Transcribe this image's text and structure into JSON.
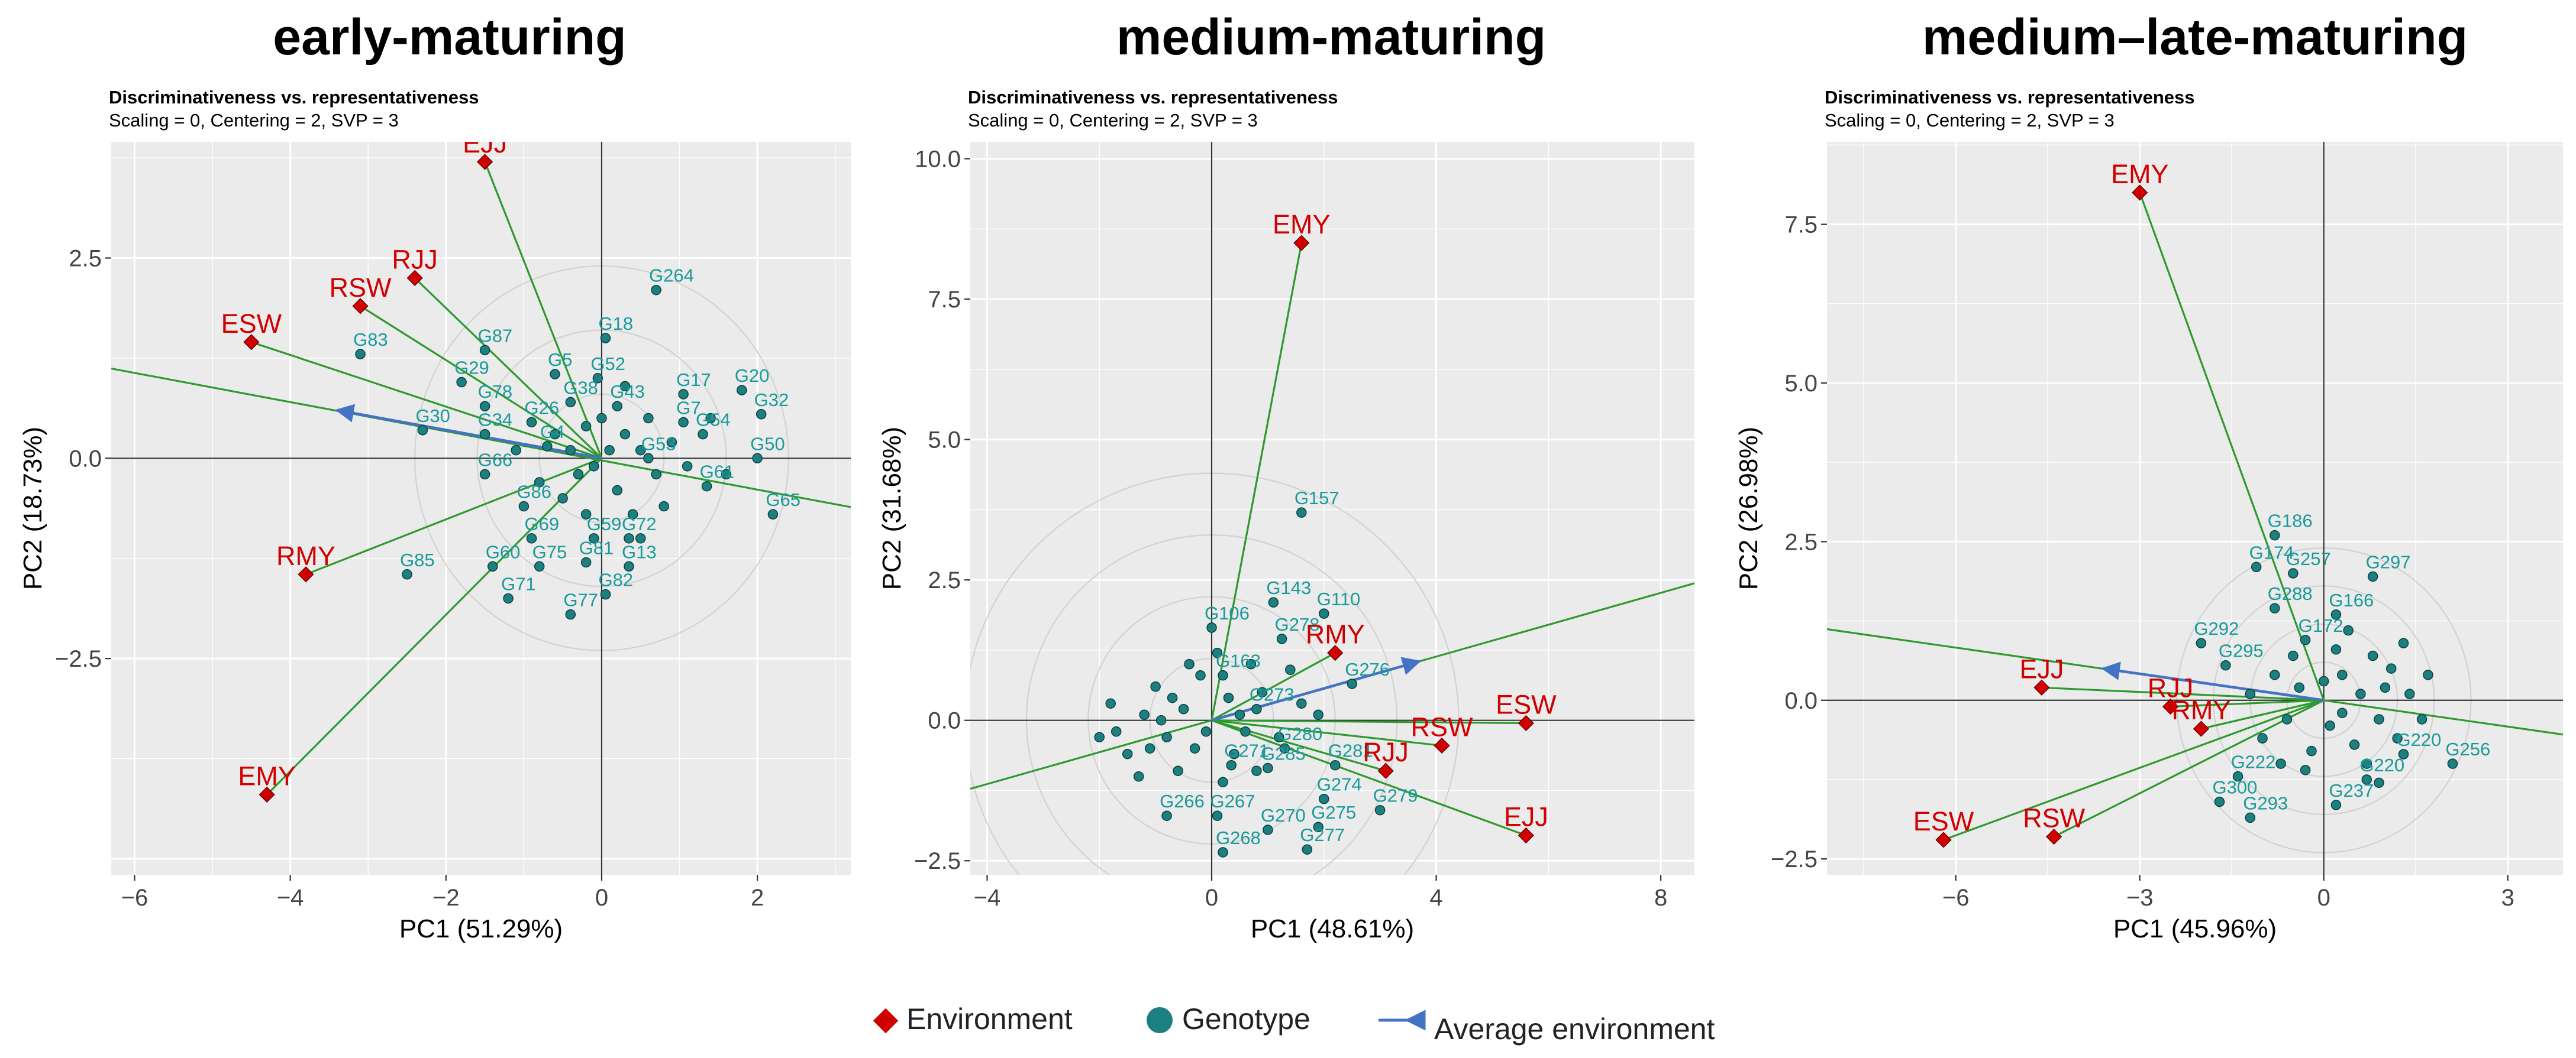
{
  "colors": {
    "panel_bg": "#ebebeb",
    "grid_major": "#ffffff",
    "environment": "#d00000",
    "genotype_fill": "#1c8080",
    "genotype_label": "#1a9a9a",
    "vector": "#2e9a2e",
    "average_arrow": "#4472c4",
    "circle": "#d2d2d2",
    "axis_zero": "#333333"
  },
  "legend": {
    "environment_label": "Environment",
    "genotype_label": "Genotype",
    "average_label": "Average environment"
  },
  "chart_data": [
    {
      "type": "scatter",
      "title": "early-maturing",
      "subtitle_bold": "Discriminativeness vs. representativeness",
      "subtitle": "Scaling = 0, Centering = 2, SVP = 3",
      "xlabel": "PC1 (51.29%)",
      "ylabel": "PC2 (18.73%)",
      "xlim": [
        -6.3,
        3.2
      ],
      "ylim": [
        -5.2,
        3.95
      ],
      "xticks": [
        -6,
        -4,
        -2,
        0,
        2
      ],
      "xtick_labels": [
        "−6",
        "−4",
        "−2",
        "0",
        "2"
      ],
      "yticks": [
        -2.5,
        0,
        2.5
      ],
      "ytick_labels": [
        "−2.5",
        "0.0",
        "2.5"
      ],
      "circles": [
        0.8,
        1.6,
        2.4
      ],
      "average_arrow": [
        -3.4,
        0.6
      ],
      "average_axis_line": [
        [
          -6.3,
          1.12
        ],
        [
          3.2,
          -0.61
        ]
      ],
      "environments": [
        {
          "label": "EJJ",
          "x": -1.5,
          "y": 3.7
        },
        {
          "label": "RJJ",
          "x": -2.4,
          "y": 2.25
        },
        {
          "label": "RSW",
          "x": -3.1,
          "y": 1.9
        },
        {
          "label": "ESW",
          "x": -4.5,
          "y": 1.45
        },
        {
          "label": "RMY",
          "x": -3.8,
          "y": -1.45
        },
        {
          "label": "EMY",
          "x": -4.3,
          "y": -4.2
        }
      ],
      "genotypes_labeled": [
        {
          "label": "G264",
          "x": 0.7,
          "y": 2.1
        },
        {
          "label": "G18",
          "x": 0.05,
          "y": 1.5
        },
        {
          "label": "G87",
          "x": -1.5,
          "y": 1.35
        },
        {
          "label": "G83",
          "x": -3.1,
          "y": 1.3
        },
        {
          "label": "G29",
          "x": -1.8,
          "y": 0.95
        },
        {
          "label": "G5",
          "x": -0.6,
          "y": 1.05
        },
        {
          "label": "G52",
          "x": -0.05,
          "y": 1.0
        },
        {
          "label": "G17",
          "x": 1.05,
          "y": 0.8
        },
        {
          "label": "G20",
          "x": 1.8,
          "y": 0.85
        },
        {
          "label": "G38",
          "x": -0.4,
          "y": 0.7
        },
        {
          "label": "G43",
          "x": 0.2,
          "y": 0.65
        },
        {
          "label": "G78",
          "x": -1.5,
          "y": 0.65
        },
        {
          "label": "G7",
          "x": 1.05,
          "y": 0.45
        },
        {
          "label": "G32",
          "x": 2.05,
          "y": 0.55
        },
        {
          "label": "G26",
          "x": -0.9,
          "y": 0.45
        },
        {
          "label": "G54",
          "x": 1.3,
          "y": 0.3
        },
        {
          "label": "G30",
          "x": -2.3,
          "y": 0.35
        },
        {
          "label": "G34",
          "x": -1.5,
          "y": 0.3
        },
        {
          "label": "G4",
          "x": -0.7,
          "y": 0.15
        },
        {
          "label": "G53",
          "x": 0.6,
          "y": 0.0
        },
        {
          "label": "G50",
          "x": 2.0,
          "y": 0.0
        },
        {
          "label": "G66",
          "x": -1.5,
          "y": -0.2
        },
        {
          "label": "G61",
          "x": 1.35,
          "y": -0.35
        },
        {
          "label": "G86",
          "x": -1.0,
          "y": -0.6
        },
        {
          "label": "G65",
          "x": 2.2,
          "y": -0.7
        },
        {
          "label": "G69",
          "x": -0.9,
          "y": -1.0
        },
        {
          "label": "G59",
          "x": -0.1,
          "y": -1.0
        },
        {
          "label": "G72",
          "x": 0.35,
          "y": -1.0
        },
        {
          "label": "G60",
          "x": -1.4,
          "y": -1.35
        },
        {
          "label": "G75",
          "x": -0.8,
          "y": -1.35
        },
        {
          "label": "G81",
          "x": -0.2,
          "y": -1.3
        },
        {
          "label": "G13",
          "x": 0.35,
          "y": -1.35
        },
        {
          "label": "G85",
          "x": -2.5,
          "y": -1.45
        },
        {
          "label": "G71",
          "x": -1.2,
          "y": -1.75
        },
        {
          "label": "G82",
          "x": 0.05,
          "y": -1.7
        },
        {
          "label": "G77",
          "x": -0.4,
          "y": -1.95
        }
      ],
      "genotypes_unlabeled": [
        {
          "x": -0.2,
          "y": 0.4
        },
        {
          "x": 0.3,
          "y": 0.3
        },
        {
          "x": 0.5,
          "y": 0.1
        },
        {
          "x": -0.3,
          "y": -0.2
        },
        {
          "x": 0.2,
          "y": -0.4
        },
        {
          "x": 0.7,
          "y": -0.2
        },
        {
          "x": -0.5,
          "y": -0.5
        },
        {
          "x": 0.9,
          "y": 0.2
        },
        {
          "x": 0.1,
          "y": 0.1
        },
        {
          "x": -0.1,
          "y": -0.1
        },
        {
          "x": 0.4,
          "y": -0.7
        },
        {
          "x": -0.6,
          "y": 0.3
        },
        {
          "x": 0.6,
          "y": 0.5
        },
        {
          "x": 1.1,
          "y": -0.1
        },
        {
          "x": -0.2,
          "y": -0.7
        },
        {
          "x": 0.3,
          "y": 0.9
        },
        {
          "x": 1.4,
          "y": 0.5
        },
        {
          "x": -0.8,
          "y": -0.3
        },
        {
          "x": 0.8,
          "y": -0.6
        },
        {
          "x": 0.0,
          "y": 0.5
        },
        {
          "x": -0.4,
          "y": 0.1
        },
        {
          "x": 0.5,
          "y": -1.0
        },
        {
          "x": 1.6,
          "y": -0.2
        },
        {
          "x": -1.1,
          "y": 0.1
        }
      ]
    },
    {
      "type": "scatter",
      "title": "medium-maturing",
      "subtitle_bold": "Discriminativeness vs. representativeness",
      "subtitle": "Scaling = 0, Centering = 2, SVP = 3",
      "xlabel": "PC1 (48.61%)",
      "ylabel": "PC2 (31.68%)",
      "xlim": [
        -4.3,
        8.6
      ],
      "ylim": [
        -2.75,
        10.3
      ],
      "xticks": [
        -4,
        0,
        4,
        8
      ],
      "xtick_labels": [
        "−4",
        "0",
        "4",
        "8"
      ],
      "yticks": [
        -2.5,
        0,
        2.5,
        5,
        7.5,
        10
      ],
      "ytick_labels": [
        "−2.5",
        "0.0",
        "2.5",
        "5.0",
        "7.5",
        "10.0"
      ],
      "circles": [
        1.1,
        2.2,
        3.3,
        4.4
      ],
      "average_arrow": [
        3.7,
        1.05
      ],
      "average_axis_line": [
        [
          -4.3,
          -1.22
        ],
        [
          8.6,
          2.44
        ]
      ],
      "environments": [
        {
          "label": "EMY",
          "x": 1.6,
          "y": 8.5
        },
        {
          "label": "RMY",
          "x": 2.2,
          "y": 1.2
        },
        {
          "label": "ESW",
          "x": 5.6,
          "y": -0.05
        },
        {
          "label": "RSW",
          "x": 4.1,
          "y": -0.45
        },
        {
          "label": "RJJ",
          "x": 3.1,
          "y": -0.9
        },
        {
          "label": "EJJ",
          "x": 5.6,
          "y": -2.05
        }
      ],
      "genotypes_labeled": [
        {
          "label": "G157",
          "x": 1.6,
          "y": 3.7
        },
        {
          "label": "G143",
          "x": 1.1,
          "y": 2.1
        },
        {
          "label": "G110",
          "x": 2.0,
          "y": 1.9
        },
        {
          "label": "G106",
          "x": 0.0,
          "y": 1.65
        },
        {
          "label": "G278",
          "x": 1.25,
          "y": 1.45
        },
        {
          "label": "G163",
          "x": 0.2,
          "y": 0.8
        },
        {
          "label": "G276",
          "x": 2.5,
          "y": 0.65
        },
        {
          "label": "G273",
          "x": 0.8,
          "y": 0.2
        },
        {
          "label": "G280",
          "x": 1.3,
          "y": -0.5
        },
        {
          "label": "G281",
          "x": 2.2,
          "y": -0.8
        },
        {
          "label": "G271",
          "x": 0.35,
          "y": -0.8
        },
        {
          "label": "G285",
          "x": 1.0,
          "y": -0.85
        },
        {
          "label": "G274",
          "x": 2.0,
          "y": -1.4
        },
        {
          "label": "G266",
          "x": -0.8,
          "y": -1.7
        },
        {
          "label": "G267",
          "x": 0.1,
          "y": -1.7
        },
        {
          "label": "G279",
          "x": 3.0,
          "y": -1.6
        },
        {
          "label": "G275",
          "x": 1.9,
          "y": -1.9
        },
        {
          "label": "G270",
          "x": 1.0,
          "y": -1.95
        },
        {
          "label": "G277",
          "x": 1.7,
          "y": -2.3
        },
        {
          "label": "G268",
          "x": 0.2,
          "y": -2.35
        }
      ],
      "genotypes_unlabeled": [
        {
          "x": -0.5,
          "y": 0.2
        },
        {
          "x": -0.8,
          "y": -0.3
        },
        {
          "x": -1.2,
          "y": 0.1
        },
        {
          "x": 0.3,
          "y": 0.4
        },
        {
          "x": -0.3,
          "y": -0.5
        },
        {
          "x": 0.6,
          "y": -0.2
        },
        {
          "x": -1.5,
          "y": -0.6
        },
        {
          "x": -0.2,
          "y": 0.8
        },
        {
          "x": 0.9,
          "y": 0.5
        },
        {
          "x": -1.0,
          "y": 0.6
        },
        {
          "x": -1.7,
          "y": -0.2
        },
        {
          "x": 0.4,
          "y": -0.6
        },
        {
          "x": -0.6,
          "y": -0.9
        },
        {
          "x": 0.1,
          "y": 1.2
        },
        {
          "x": 1.4,
          "y": 0.9
        },
        {
          "x": -1.3,
          "y": -1.0
        },
        {
          "x": -2.0,
          "y": -0.3
        },
        {
          "x": 0.7,
          "y": 1.0
        },
        {
          "x": -0.4,
          "y": 1.0
        },
        {
          "x": 1.6,
          "y": 0.3
        },
        {
          "x": -0.9,
          "y": 0.0
        },
        {
          "x": 0.2,
          "y": -1.1
        },
        {
          "x": -1.8,
          "y": 0.3
        },
        {
          "x": 1.2,
          "y": -0.3
        },
        {
          "x": -0.1,
          "y": -0.2
        },
        {
          "x": 0.5,
          "y": 0.1
        },
        {
          "x": -1.1,
          "y": -0.5
        },
        {
          "x": 1.9,
          "y": 0.1
        },
        {
          "x": -0.7,
          "y": 0.4
        },
        {
          "x": 0.8,
          "y": -0.9
        }
      ]
    },
    {
      "type": "scatter",
      "title": "medium–late-maturing",
      "subtitle_bold": "Discriminativeness vs. representativeness",
      "subtitle": "Scaling = 0, Centering = 2, SVP = 3",
      "xlabel": "PC1 (45.96%)",
      "ylabel": "PC2 (26.98%)",
      "xlim": [
        -8.1,
        3.9
      ],
      "ylim": [
        -2.75,
        8.8
      ],
      "xticks": [
        -6,
        -3,
        0,
        3
      ],
      "xtick_labels": [
        "−6",
        "−3",
        "0",
        "3"
      ],
      "yticks": [
        -2.5,
        0,
        2.5,
        5,
        7.5
      ],
      "ytick_labels": [
        "−2.5",
        "0.0",
        "2.5",
        "5.0",
        "7.5"
      ],
      "circles": [
        0.6,
        1.2,
        1.8,
        2.4
      ],
      "average_arrow": [
        -3.6,
        0.5
      ],
      "average_axis_line": [
        [
          -8.1,
          1.12
        ],
        [
          3.9,
          -0.54
        ]
      ],
      "environments": [
        {
          "label": "EMY",
          "x": -3.0,
          "y": 8.0
        },
        {
          "label": "EJJ",
          "x": -4.6,
          "y": 0.2
        },
        {
          "label": "RJJ",
          "x": -2.5,
          "y": -0.1
        },
        {
          "label": "RMY",
          "x": -2.0,
          "y": -0.45
        },
        {
          "label": "ESW",
          "x": -6.2,
          "y": -2.2
        },
        {
          "label": "RSW",
          "x": -4.4,
          "y": -2.15
        }
      ],
      "genotypes_labeled": [
        {
          "label": "G186",
          "x": -0.8,
          "y": 2.6
        },
        {
          "label": "G174",
          "x": -1.1,
          "y": 2.1
        },
        {
          "label": "G257",
          "x": -0.5,
          "y": 2.0
        },
        {
          "label": "G297",
          "x": 0.8,
          "y": 1.95
        },
        {
          "label": "G288",
          "x": -0.8,
          "y": 1.45
        },
        {
          "label": "G166",
          "x": 0.2,
          "y": 1.35
        },
        {
          "label": "G292",
          "x": -2.0,
          "y": 0.9
        },
        {
          "label": "G172",
          "x": -0.3,
          "y": 0.95
        },
        {
          "label": "G295",
          "x": -1.6,
          "y": 0.55
        },
        {
          "label": "G220",
          "x": 1.3,
          "y": -0.85
        },
        {
          "label": "G222",
          "x": -1.4,
          "y": -1.2
        },
        {
          "label": "G220",
          "x": 0.7,
          "y": -1.25
        },
        {
          "label": "G256",
          "x": 2.1,
          "y": -1.0
        },
        {
          "label": "G300",
          "x": -1.7,
          "y": -1.6
        },
        {
          "label": "G237",
          "x": 0.2,
          "y": -1.65
        },
        {
          "label": "G293",
          "x": -1.2,
          "y": -1.85
        }
      ],
      "genotypes_unlabeled": [
        {
          "x": 0.3,
          "y": 0.4
        },
        {
          "x": 0.6,
          "y": 0.1
        },
        {
          "x": 0.9,
          "y": -0.3
        },
        {
          "x": -0.4,
          "y": 0.2
        },
        {
          "x": 0.1,
          "y": -0.4
        },
        {
          "x": 1.1,
          "y": 0.5
        },
        {
          "x": 0.5,
          "y": -0.7
        },
        {
          "x": -0.6,
          "y": -0.3
        },
        {
          "x": 1.4,
          "y": 0.1
        },
        {
          "x": 0.2,
          "y": 0.8
        },
        {
          "x": -0.2,
          "y": -0.8
        },
        {
          "x": 0.8,
          "y": 0.7
        },
        {
          "x": 1.2,
          "y": -0.6
        },
        {
          "x": -0.8,
          "y": 0.4
        },
        {
          "x": 0.4,
          "y": 1.1
        },
        {
          "x": -1.0,
          "y": -0.6
        },
        {
          "x": 1.6,
          "y": -0.3
        },
        {
          "x": 0.0,
          "y": 0.3
        },
        {
          "x": 0.7,
          "y": -1.0
        },
        {
          "x": -0.5,
          "y": 0.7
        },
        {
          "x": 1.0,
          "y": 0.2
        },
        {
          "x": -0.3,
          "y": -1.1
        },
        {
          "x": 1.3,
          "y": 0.9
        },
        {
          "x": 0.3,
          "y": -0.2
        },
        {
          "x": -1.2,
          "y": 0.1
        },
        {
          "x": 0.9,
          "y": -1.3
        },
        {
          "x": 1.7,
          "y": 0.4
        },
        {
          "x": -0.7,
          "y": -1.0
        }
      ]
    }
  ]
}
